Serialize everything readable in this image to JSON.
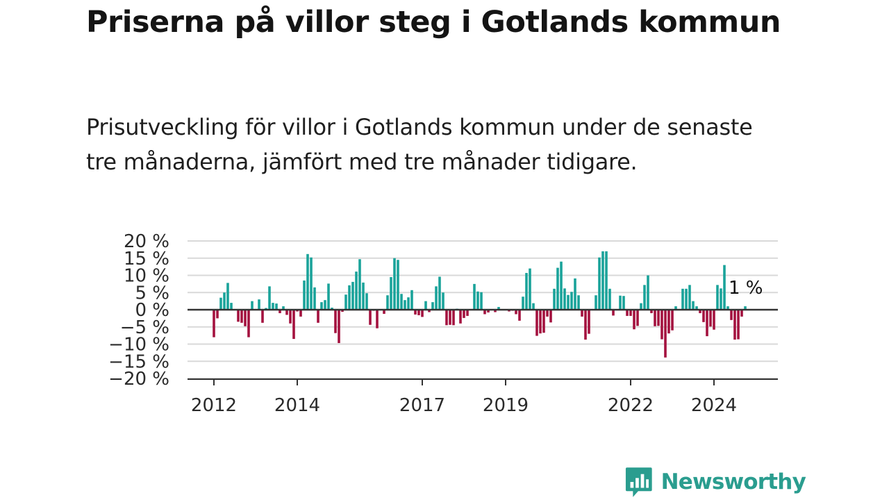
{
  "title": "Priserna på villor steg i Gotlands kommun",
  "subtitle": "Prisutveckling för villor i Gotlands kommun under de senaste tre månaderna, jämfört med tre månader tidigare.",
  "brand": {
    "name": "Newsworthy",
    "color": "#2a9d8f"
  },
  "colors": {
    "positive": "#1aa39a",
    "negative": "#a4123f",
    "zero_line": "#333333",
    "grid": "#d9d9d9"
  },
  "chart_data": {
    "type": "bar",
    "xlabel": "",
    "ylabel": "",
    "ylim": [
      -20,
      20
    ],
    "y_ticks": [
      20,
      15,
      10,
      5,
      0,
      -5,
      -10,
      -15,
      -20
    ],
    "y_tick_labels": [
      "20 %",
      "15 %",
      "10 %",
      "5 %",
      "0 %",
      "−5 %",
      "−10 %",
      "−15 %",
      "−20 %"
    ],
    "x_ticks": [
      {
        "label": "2012",
        "year": 2012
      },
      {
        "label": "2014",
        "year": 2014
      },
      {
        "label": "2017",
        "year": 2017
      },
      {
        "label": "2019",
        "year": 2019
      },
      {
        "label": "2022",
        "year": 2022
      },
      {
        "label": "2024",
        "year": 2024
      }
    ],
    "start": "2012-01",
    "grid": true,
    "annotation": {
      "text": "1 %",
      "target": "last"
    },
    "values": [
      -8,
      -2.5,
      3.5,
      5,
      7.8,
      2,
      0,
      -3.5,
      -3.8,
      -4.8,
      -8,
      2.5,
      0,
      3,
      -3.8,
      0.5,
      6.8,
      2,
      1.8,
      -1,
      1,
      -1.5,
      -4,
      -8.5,
      -0.5,
      -2,
      8.5,
      16.2,
      15.2,
      6.5,
      -3.8,
      2.2,
      2.8,
      7.6,
      0.6,
      -6.8,
      -9.7,
      -0.6,
      4.4,
      7.1,
      8.1,
      11.1,
      14.7,
      7.9,
      4.8,
      -4.4,
      -0.3,
      -5.4,
      0,
      -1.2,
      4.2,
      9.5,
      15,
      14.5,
      4.6,
      2.8,
      3.6,
      5.7,
      -1.4,
      -1.6,
      -2.1,
      2.5,
      -0.7,
      2.2,
      6.8,
      9.6,
      5,
      -4.5,
      -4.4,
      -4.5,
      0.3,
      -4,
      -2.4,
      -1.8,
      0,
      7.5,
      5.3,
      5.1,
      -1.3,
      -0.8,
      -0.2,
      -0.7,
      0.8,
      0,
      0,
      -0.5,
      -0.3,
      -1.3,
      -3.2,
      3.8,
      10.7,
      12,
      1.9,
      -7.6,
      -6.9,
      -6.7,
      -2,
      -3.7,
      6.1,
      12.2,
      14,
      6.2,
      4.3,
      5.2,
      9.1,
      4.2,
      -2,
      -8.7,
      -7,
      0,
      4.2,
      15.2,
      17,
      17,
      6.1,
      -1.7,
      0,
      4.1,
      4,
      -1.8,
      -1.8,
      -5.7,
      -4.7,
      1.9,
      7.2,
      10,
      -1,
      -4.8,
      -4.7,
      -8.6,
      -13.9,
      -6.9,
      -6,
      1,
      0,
      6.1,
      6.1,
      7.2,
      2.5,
      1,
      -1,
      -3.6,
      -7.7,
      -4.9,
      -5.8,
      7.2,
      6.2,
      13,
      1,
      -3,
      -8.7,
      -8.6,
      -2,
      1
    ]
  }
}
